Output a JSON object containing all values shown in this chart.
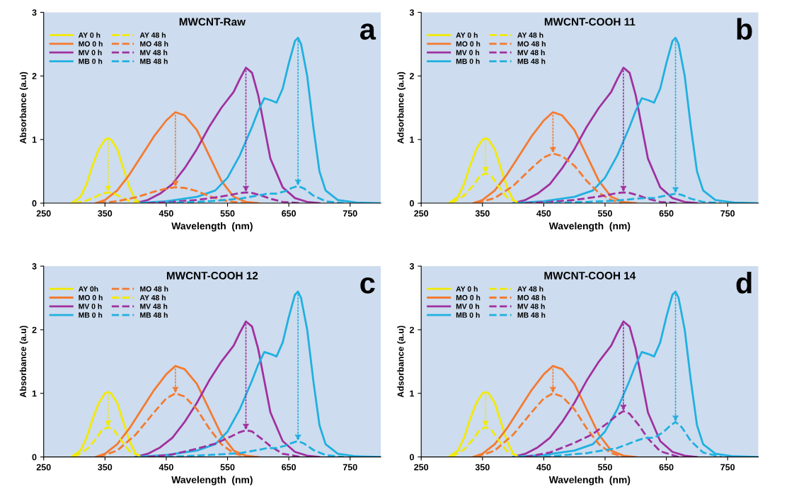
{
  "chart_data": [
    {
      "type": "line",
      "title": "MWCNT-Raw",
      "xlabel": "Wavelength  (nm)",
      "ylabel": "Absorbance (a.u)",
      "annotations": [
        "a"
      ],
      "xlim": [
        250,
        800
      ],
      "xticks": [
        250,
        350,
        450,
        550,
        650,
        750
      ],
      "ylim": [
        0,
        3
      ],
      "yticks": [
        0,
        1,
        2,
        3
      ],
      "legend": "top left",
      "grid": false,
      "marker": "none",
      "series": [
        {
          "name": "AY 0 h",
          "color": "#f2ea00",
          "line_style": "solid",
          "x": [
            295,
            310,
            320,
            330,
            340,
            350,
            355,
            360,
            370,
            380,
            390,
            400,
            410
          ],
          "values": [
            0,
            0.1,
            0.3,
            0.6,
            0.85,
            1.0,
            1.02,
            1.0,
            0.85,
            0.55,
            0.25,
            0.05,
            0
          ]
        },
        {
          "name": "MO 0 h",
          "color": "#f47a30",
          "line_style": "solid",
          "x": [
            335,
            350,
            370,
            390,
            410,
            430,
            450,
            465,
            480,
            500,
            520,
            540,
            560,
            580,
            600
          ],
          "values": [
            0,
            0.05,
            0.2,
            0.45,
            0.75,
            1.05,
            1.3,
            1.43,
            1.38,
            1.15,
            0.75,
            0.35,
            0.1,
            0.02,
            0
          ]
        },
        {
          "name": "MV 0 h",
          "color": "#a0309f",
          "line_style": "solid",
          "x": [
            400,
            420,
            440,
            460,
            480,
            500,
            520,
            540,
            560,
            570,
            580,
            590,
            600,
            610,
            620,
            640,
            660,
            680,
            700
          ],
          "values": [
            0,
            0.05,
            0.15,
            0.3,
            0.55,
            0.85,
            1.2,
            1.5,
            1.75,
            1.95,
            2.13,
            2.05,
            1.7,
            1.2,
            0.7,
            0.25,
            0.08,
            0.02,
            0
          ]
        },
        {
          "name": "MB 0 h",
          "color": "#1fb0e0",
          "line_style": "solid",
          "x": [
            400,
            450,
            500,
            530,
            550,
            570,
            590,
            600,
            610,
            620,
            630,
            640,
            650,
            660,
            665,
            670,
            680,
            690,
            700,
            710,
            730,
            760,
            800
          ],
          "values": [
            0,
            0.03,
            0.1,
            0.2,
            0.4,
            0.75,
            1.2,
            1.45,
            1.65,
            1.62,
            1.58,
            1.8,
            2.2,
            2.55,
            2.6,
            2.5,
            2.0,
            1.2,
            0.5,
            0.2,
            0.05,
            0.01,
            0
          ]
        },
        {
          "name": "AY 48 h",
          "color": "#f2ea00",
          "line_style": "dashed",
          "x": [
            300,
            320,
            335,
            345,
            355,
            365,
            375,
            390,
            410
          ],
          "values": [
            0,
            0.04,
            0.1,
            0.15,
            0.17,
            0.15,
            0.1,
            0.03,
            0
          ]
        },
        {
          "name": "MO 48 h",
          "color": "#f47a30",
          "line_style": "dashed",
          "x": [
            340,
            370,
            400,
            430,
            450,
            465,
            480,
            500,
            520,
            540,
            560,
            580
          ],
          "values": [
            0,
            0.03,
            0.09,
            0.18,
            0.23,
            0.25,
            0.24,
            0.19,
            0.11,
            0.05,
            0.02,
            0
          ]
        },
        {
          "name": "MV 48 h",
          "color": "#a0309f",
          "line_style": "dashed",
          "x": [
            420,
            460,
            500,
            530,
            555,
            570,
            580,
            590,
            605,
            620,
            640,
            670
          ],
          "values": [
            0,
            0.02,
            0.05,
            0.09,
            0.13,
            0.16,
            0.17,
            0.16,
            0.12,
            0.07,
            0.02,
            0
          ]
        },
        {
          "name": "MB 48 h",
          "color": "#1fb0e0",
          "line_style": "dashed",
          "x": [
            450,
            520,
            570,
            600,
            615,
            630,
            645,
            655,
            665,
            675,
            690,
            710,
            740
          ],
          "values": [
            0,
            0.03,
            0.07,
            0.12,
            0.15,
            0.15,
            0.19,
            0.24,
            0.27,
            0.23,
            0.12,
            0.03,
            0
          ]
        }
      ]
    },
    {
      "type": "line",
      "title": "MWCNT-COOH 11",
      "xlabel": "Wavelength  (nm)",
      "ylabel": "Adsorbance (a.u)",
      "annotations": [
        "b"
      ],
      "xlim": [
        250,
        800
      ],
      "xticks": [
        250,
        350,
        450,
        550,
        650,
        750
      ],
      "ylim": [
        0,
        3
      ],
      "yticks": [
        0,
        1,
        2,
        3
      ],
      "legend": "top left",
      "grid": false,
      "marker": "none",
      "series": [
        {
          "name": "AY 0 h",
          "color": "#f2ea00",
          "line_style": "solid",
          "x": [
            295,
            310,
            320,
            330,
            340,
            350,
            355,
            360,
            370,
            380,
            390,
            400,
            410
          ],
          "values": [
            0,
            0.1,
            0.3,
            0.6,
            0.85,
            1.0,
            1.02,
            1.0,
            0.85,
            0.55,
            0.25,
            0.05,
            0
          ]
        },
        {
          "name": "MO 0 h",
          "color": "#f47a30",
          "line_style": "solid",
          "x": [
            335,
            350,
            370,
            390,
            410,
            430,
            450,
            465,
            480,
            500,
            520,
            540,
            560,
            580,
            600
          ],
          "values": [
            0,
            0.05,
            0.2,
            0.45,
            0.75,
            1.05,
            1.3,
            1.43,
            1.38,
            1.15,
            0.75,
            0.35,
            0.1,
            0.02,
            0
          ]
        },
        {
          "name": "MV 0 h",
          "color": "#a0309f",
          "line_style": "solid",
          "x": [
            400,
            420,
            440,
            460,
            480,
            500,
            520,
            540,
            560,
            570,
            580,
            590,
            600,
            610,
            620,
            640,
            660,
            680,
            700
          ],
          "values": [
            0,
            0.05,
            0.15,
            0.3,
            0.55,
            0.85,
            1.2,
            1.5,
            1.75,
            1.95,
            2.13,
            2.05,
            1.7,
            1.2,
            0.7,
            0.25,
            0.08,
            0.02,
            0
          ]
        },
        {
          "name": "MB 0 h",
          "color": "#1fb0e0",
          "line_style": "solid",
          "x": [
            400,
            450,
            500,
            530,
            550,
            570,
            590,
            600,
            610,
            620,
            630,
            640,
            650,
            660,
            665,
            670,
            680,
            690,
            700,
            710,
            730,
            760,
            800
          ],
          "values": [
            0,
            0.03,
            0.1,
            0.2,
            0.4,
            0.75,
            1.2,
            1.45,
            1.65,
            1.62,
            1.58,
            1.8,
            2.2,
            2.55,
            2.6,
            2.5,
            2.0,
            1.2,
            0.5,
            0.2,
            0.05,
            0.01,
            0
          ]
        },
        {
          "name": "AY 48 h",
          "color": "#f2ea00",
          "line_style": "dashed",
          "x": [
            300,
            320,
            335,
            345,
            355,
            365,
            375,
            390,
            410
          ],
          "values": [
            0,
            0.12,
            0.28,
            0.42,
            0.47,
            0.42,
            0.28,
            0.09,
            0
          ]
        },
        {
          "name": "MO 48 h",
          "color": "#f47a30",
          "line_style": "dashed",
          "x": [
            340,
            370,
            400,
            430,
            450,
            465,
            480,
            500,
            520,
            540,
            560,
            580
          ],
          "values": [
            0,
            0.08,
            0.27,
            0.55,
            0.72,
            0.78,
            0.74,
            0.59,
            0.35,
            0.16,
            0.05,
            0
          ]
        },
        {
          "name": "MV 48 h",
          "color": "#a0309f",
          "line_style": "dashed",
          "x": [
            420,
            460,
            500,
            530,
            555,
            570,
            580,
            590,
            605,
            620,
            640,
            670
          ],
          "values": [
            0,
            0.02,
            0.05,
            0.09,
            0.13,
            0.16,
            0.17,
            0.16,
            0.12,
            0.07,
            0.02,
            0
          ]
        },
        {
          "name": "MB 48 h",
          "color": "#1fb0e0",
          "line_style": "dashed",
          "x": [
            450,
            520,
            570,
            600,
            615,
            630,
            645,
            655,
            665,
            675,
            690,
            710,
            740
          ],
          "values": [
            0,
            0.02,
            0.04,
            0.07,
            0.08,
            0.08,
            0.11,
            0.13,
            0.15,
            0.13,
            0.07,
            0.02,
            0
          ]
        }
      ]
    },
    {
      "type": "line",
      "title": "MWCNT-COOH 12",
      "xlabel": "Wavelength  (nm)",
      "ylabel": "Absorbance (a.u)",
      "annotations": [
        "c"
      ],
      "xlim": [
        250,
        800
      ],
      "xticks": [
        250,
        350,
        450,
        550,
        650,
        750
      ],
      "ylim": [
        0,
        3
      ],
      "yticks": [
        0,
        1,
        2,
        3
      ],
      "legend": "top left",
      "grid": false,
      "marker": "none",
      "series": [
        {
          "name": "AY 0h",
          "color": "#f2ea00",
          "line_style": "solid",
          "x": [
            295,
            310,
            320,
            330,
            340,
            350,
            355,
            360,
            370,
            380,
            390,
            400,
            410
          ],
          "values": [
            0,
            0.1,
            0.3,
            0.6,
            0.85,
            1.0,
            1.02,
            1.0,
            0.85,
            0.55,
            0.25,
            0.05,
            0
          ]
        },
        {
          "name": "MO 0 h",
          "color": "#f47a30",
          "line_style": "solid",
          "x": [
            335,
            350,
            370,
            390,
            410,
            430,
            450,
            465,
            480,
            500,
            520,
            540,
            560,
            580,
            600
          ],
          "values": [
            0,
            0.05,
            0.2,
            0.45,
            0.75,
            1.05,
            1.3,
            1.43,
            1.38,
            1.15,
            0.75,
            0.35,
            0.1,
            0.02,
            0
          ]
        },
        {
          "name": "MV 0 h",
          "color": "#a0309f",
          "line_style": "solid",
          "x": [
            400,
            420,
            440,
            460,
            480,
            500,
            520,
            540,
            560,
            570,
            580,
            590,
            600,
            610,
            620,
            640,
            660,
            680,
            700
          ],
          "values": [
            0,
            0.05,
            0.15,
            0.3,
            0.55,
            0.85,
            1.2,
            1.5,
            1.75,
            1.95,
            2.13,
            2.05,
            1.7,
            1.2,
            0.7,
            0.25,
            0.08,
            0.02,
            0
          ]
        },
        {
          "name": "MB 0 h",
          "color": "#1fb0e0",
          "line_style": "solid",
          "x": [
            400,
            450,
            500,
            530,
            550,
            570,
            590,
            600,
            610,
            620,
            630,
            640,
            650,
            660,
            665,
            670,
            680,
            690,
            700,
            710,
            730,
            760,
            800
          ],
          "values": [
            0,
            0.03,
            0.1,
            0.2,
            0.4,
            0.75,
            1.2,
            1.45,
            1.65,
            1.62,
            1.58,
            1.8,
            2.2,
            2.55,
            2.6,
            2.5,
            2.0,
            1.2,
            0.5,
            0.2,
            0.05,
            0.01,
            0
          ]
        },
        {
          "name": "MO 48 h",
          "color": "#f47a30",
          "line_style": "dashed",
          "x": [
            340,
            370,
            400,
            430,
            450,
            465,
            480,
            500,
            520,
            540,
            560,
            580
          ],
          "values": [
            0,
            0.1,
            0.35,
            0.7,
            0.92,
            1.0,
            0.95,
            0.75,
            0.45,
            0.2,
            0.06,
            0
          ]
        },
        {
          "name": "AY 48 h",
          "color": "#f2ea00",
          "line_style": "dashed",
          "x": [
            300,
            320,
            335,
            345,
            355,
            365,
            375,
            390,
            410
          ],
          "values": [
            0,
            0.12,
            0.28,
            0.42,
            0.47,
            0.42,
            0.28,
            0.09,
            0
          ]
        },
        {
          "name": "MV 48 h",
          "color": "#a0309f",
          "line_style": "dashed",
          "x": [
            420,
            460,
            500,
            530,
            555,
            570,
            580,
            590,
            605,
            620,
            640,
            670
          ],
          "values": [
            0,
            0.04,
            0.13,
            0.21,
            0.32,
            0.39,
            0.42,
            0.4,
            0.29,
            0.17,
            0.05,
            0
          ]
        },
        {
          "name": "MB 48 h",
          "color": "#1fb0e0",
          "line_style": "dashed",
          "x": [
            450,
            520,
            570,
            600,
            615,
            630,
            645,
            655,
            665,
            675,
            690,
            710,
            740
          ],
          "values": [
            0,
            0.03,
            0.06,
            0.11,
            0.14,
            0.14,
            0.18,
            0.22,
            0.25,
            0.21,
            0.11,
            0.03,
            0
          ]
        }
      ]
    },
    {
      "type": "line",
      "title": "MWCNT-COOH 14",
      "xlabel": "Wavelength  (nm)",
      "ylabel": "Adsorbance (a.u)",
      "annotations": [
        "d"
      ],
      "xlim": [
        250,
        800
      ],
      "xticks": [
        250,
        350,
        450,
        550,
        650,
        750
      ],
      "ylim": [
        0,
        3
      ],
      "yticks": [
        0,
        1,
        2,
        3
      ],
      "legend": "top left",
      "grid": false,
      "marker": "none",
      "series": [
        {
          "name": "AY 0 h",
          "color": "#f2ea00",
          "line_style": "solid",
          "x": [
            295,
            310,
            320,
            330,
            340,
            350,
            355,
            360,
            370,
            380,
            390,
            400,
            410
          ],
          "values": [
            0,
            0.1,
            0.3,
            0.6,
            0.85,
            1.0,
            1.02,
            1.0,
            0.85,
            0.55,
            0.25,
            0.05,
            0
          ]
        },
        {
          "name": "MO 0 h",
          "color": "#f47a30",
          "line_style": "solid",
          "x": [
            335,
            350,
            370,
            390,
            410,
            430,
            450,
            465,
            480,
            500,
            520,
            540,
            560,
            580,
            600
          ],
          "values": [
            0,
            0.05,
            0.2,
            0.45,
            0.75,
            1.05,
            1.3,
            1.43,
            1.38,
            1.15,
            0.75,
            0.35,
            0.1,
            0.02,
            0
          ]
        },
        {
          "name": "MV 0 h",
          "color": "#a0309f",
          "line_style": "solid",
          "x": [
            400,
            420,
            440,
            460,
            480,
            500,
            520,
            540,
            560,
            570,
            580,
            590,
            600,
            610,
            620,
            640,
            660,
            680,
            700
          ],
          "values": [
            0,
            0.05,
            0.15,
            0.3,
            0.55,
            0.85,
            1.2,
            1.5,
            1.75,
            1.95,
            2.13,
            2.05,
            1.7,
            1.2,
            0.7,
            0.25,
            0.08,
            0.02,
            0
          ]
        },
        {
          "name": "MB 0 h",
          "color": "#1fb0e0",
          "line_style": "solid",
          "x": [
            400,
            450,
            500,
            530,
            550,
            570,
            590,
            600,
            610,
            620,
            630,
            640,
            650,
            660,
            665,
            670,
            680,
            690,
            700,
            710,
            730,
            760,
            800
          ],
          "values": [
            0,
            0.03,
            0.1,
            0.2,
            0.4,
            0.75,
            1.2,
            1.45,
            1.65,
            1.62,
            1.58,
            1.8,
            2.2,
            2.55,
            2.6,
            2.5,
            2.0,
            1.2,
            0.5,
            0.2,
            0.05,
            0.01,
            0
          ]
        },
        {
          "name": "AY 48 h",
          "color": "#f2ea00",
          "line_style": "dashed",
          "x": [
            300,
            320,
            335,
            345,
            355,
            365,
            375,
            390,
            410
          ],
          "values": [
            0,
            0.12,
            0.28,
            0.42,
            0.47,
            0.42,
            0.28,
            0.09,
            0
          ]
        },
        {
          "name": "MO 48 h",
          "color": "#f47a30",
          "line_style": "dashed",
          "x": [
            340,
            370,
            400,
            430,
            450,
            465,
            480,
            500,
            520,
            540,
            560,
            580
          ],
          "values": [
            0,
            0.1,
            0.35,
            0.7,
            0.92,
            1.0,
            0.95,
            0.75,
            0.45,
            0.2,
            0.06,
            0
          ]
        },
        {
          "name": "MV 48 h",
          "color": "#a0309f",
          "line_style": "dashed",
          "x": [
            420,
            460,
            500,
            530,
            555,
            570,
            580,
            590,
            605,
            620,
            640,
            670
          ],
          "values": [
            0,
            0.07,
            0.22,
            0.36,
            0.54,
            0.66,
            0.72,
            0.68,
            0.5,
            0.29,
            0.09,
            0
          ]
        },
        {
          "name": "MB 48 h",
          "color": "#1fb0e0",
          "line_style": "dashed",
          "x": [
            450,
            520,
            570,
            600,
            615,
            630,
            645,
            655,
            665,
            675,
            690,
            710,
            740
          ],
          "values": [
            0,
            0.06,
            0.14,
            0.25,
            0.3,
            0.3,
            0.39,
            0.48,
            0.55,
            0.47,
            0.25,
            0.07,
            0
          ]
        }
      ]
    }
  ]
}
